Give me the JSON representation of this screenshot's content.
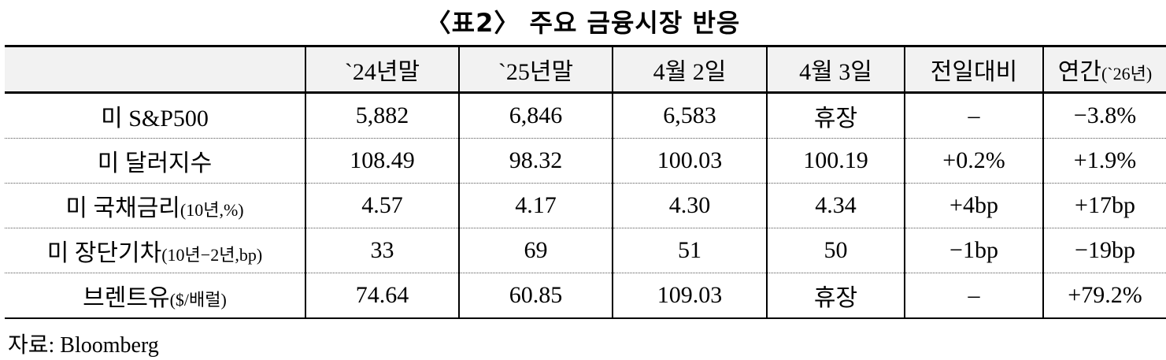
{
  "title": "〈표2〉 주요 금융시장 반응",
  "table": {
    "headers": [
      "",
      "`24년말",
      "`25년말",
      "4월 2일",
      "4월 3일",
      "전일대비",
      "연간"
    ],
    "header_suffix": "(`26년)",
    "rows": [
      {
        "label": "미 S&P500",
        "label_suffix": "",
        "cells": [
          "5,882",
          "6,846",
          "6,583",
          "휴장",
          "–",
          "−3.8%"
        ]
      },
      {
        "label": "미 달러지수",
        "label_suffix": "",
        "cells": [
          "108.49",
          "98.32",
          "100.03",
          "100.19",
          "+0.2%",
          "+1.9%"
        ]
      },
      {
        "label": "미 국채금리",
        "label_suffix": "(10년,%)",
        "cells": [
          "4.57",
          "4.17",
          "4.30",
          "4.34",
          "+4bp",
          "+17bp"
        ]
      },
      {
        "label": "미 장단기차",
        "label_suffix": "(10년−2년,bp)",
        "cells": [
          "33",
          "69",
          "51",
          "50",
          "−1bp",
          "−19bp"
        ]
      },
      {
        "label": "브렌트유",
        "label_suffix": "($/배럴)",
        "cells": [
          "74.64",
          "60.85",
          "109.03",
          "휴장",
          "–",
          "+79.2%"
        ]
      }
    ]
  },
  "source": "자료: Bloomberg",
  "colors": {
    "header_bg": "#f2f2f2",
    "border": "#000000"
  }
}
